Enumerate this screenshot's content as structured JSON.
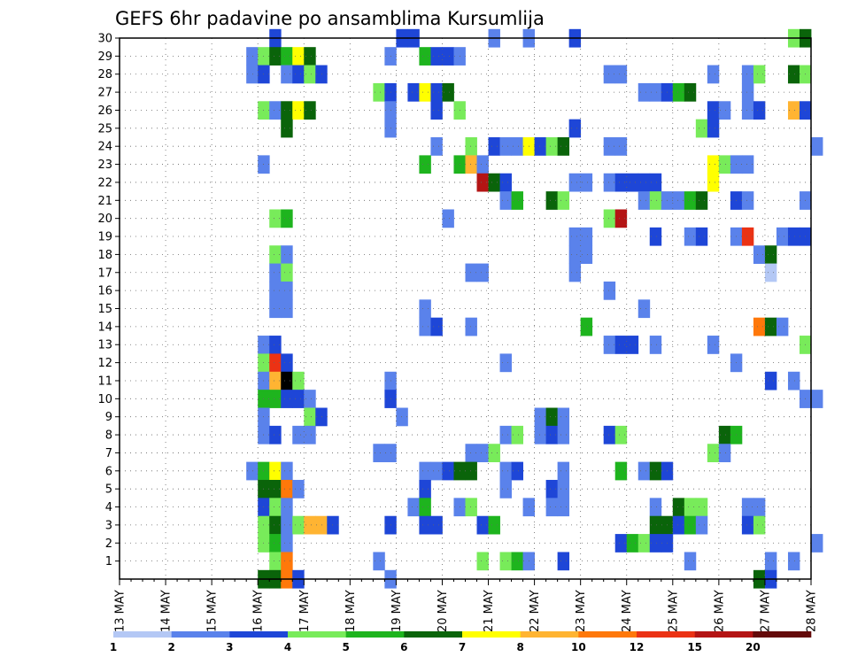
{
  "chart_data": {
    "type": "heatmap",
    "title": "GEFS 6hr padavine po ansamblima Kursumlija",
    "xlabel": "",
    "ylabel": "",
    "x_tick_labels": [
      "13 MAY",
      "14 MAY",
      "15 MAY",
      "16 MAY",
      "17 MAY",
      "18 MAY",
      "19 MAY",
      "20 MAY",
      "21 MAY",
      "22 MAY",
      "23 MAY",
      "24 MAY",
      "25 MAY",
      "26 MAY",
      "27 MAY",
      "28 MAY"
    ],
    "xlim": [
      0,
      15
    ],
    "ylim": [
      0,
      30
    ],
    "y_ticks": [
      1,
      2,
      3,
      4,
      5,
      6,
      7,
      8,
      9,
      10,
      11,
      12,
      13,
      14,
      15,
      16,
      17,
      18,
      19,
      20,
      21,
      22,
      23,
      24,
      25,
      26,
      27,
      28,
      29,
      30
    ],
    "x_step": 0.25,
    "grid": true,
    "legend": {
      "placement": "bottom",
      "labels": [
        "1",
        "2",
        "3",
        "4",
        "5",
        "6",
        "7",
        "8",
        "10",
        "12",
        "15",
        "20"
      ],
      "colors": [
        "#b4c8f5",
        "#5a82eb",
        "#1e46d7",
        "#78eb5a",
        "#1eb41e",
        "#0a640a",
        "#ffff00",
        "#ffb432",
        "#ff780a",
        "#eb3214",
        "#b41414",
        "#640a0a"
      ]
    },
    "cells": [
      [
        3.25,
        30,
        2
      ],
      [
        6.0,
        30,
        2
      ],
      [
        6.25,
        30,
        2
      ],
      [
        8.0,
        30,
        1
      ],
      [
        8.75,
        30,
        1
      ],
      [
        9.75,
        30,
        2
      ],
      [
        14.5,
        30,
        3
      ],
      [
        14.75,
        30,
        5
      ],
      [
        2.75,
        29,
        1
      ],
      [
        3.0,
        29,
        3
      ],
      [
        3.25,
        29,
        5
      ],
      [
        3.5,
        29,
        4
      ],
      [
        3.75,
        29,
        6
      ],
      [
        4.0,
        29,
        5
      ],
      [
        5.75,
        29,
        1
      ],
      [
        6.5,
        29,
        4
      ],
      [
        6.75,
        29,
        2
      ],
      [
        7.0,
        29,
        2
      ],
      [
        7.25,
        29,
        1
      ],
      [
        2.75,
        28,
        1
      ],
      [
        3.0,
        28,
        2
      ],
      [
        3.5,
        28,
        1
      ],
      [
        3.75,
        28,
        2
      ],
      [
        4.0,
        28,
        3
      ],
      [
        4.25,
        28,
        2
      ],
      [
        10.5,
        28,
        1
      ],
      [
        10.75,
        28,
        1
      ],
      [
        12.75,
        28,
        1
      ],
      [
        13.5,
        28,
        1
      ],
      [
        13.75,
        28,
        3
      ],
      [
        14.5,
        28,
        5
      ],
      [
        14.75,
        28,
        3
      ],
      [
        5.5,
        27,
        3
      ],
      [
        5.75,
        27,
        2
      ],
      [
        6.25,
        27,
        2
      ],
      [
        6.5,
        27,
        6
      ],
      [
        6.75,
        27,
        2
      ],
      [
        7.0,
        27,
        5
      ],
      [
        11.25,
        27,
        1
      ],
      [
        11.5,
        27,
        1
      ],
      [
        11.75,
        27,
        2
      ],
      [
        12.0,
        27,
        4
      ],
      [
        12.25,
        27,
        5
      ],
      [
        13.5,
        27,
        1
      ],
      [
        3.0,
        26,
        3
      ],
      [
        3.25,
        26,
        1
      ],
      [
        3.5,
        26,
        5
      ],
      [
        3.75,
        26,
        6
      ],
      [
        4.0,
        26,
        5
      ],
      [
        5.75,
        26,
        1
      ],
      [
        6.75,
        26,
        2
      ],
      [
        7.25,
        26,
        3
      ],
      [
        12.75,
        26,
        2
      ],
      [
        13.0,
        26,
        1
      ],
      [
        13.5,
        26,
        1
      ],
      [
        13.75,
        26,
        2
      ],
      [
        14.5,
        26,
        7
      ],
      [
        14.75,
        26,
        2
      ],
      [
        3.5,
        25,
        5
      ],
      [
        5.75,
        25,
        1
      ],
      [
        9.75,
        25,
        2
      ],
      [
        12.5,
        25,
        3
      ],
      [
        12.75,
        25,
        2
      ],
      [
        6.75,
        24,
        1
      ],
      [
        7.5,
        24,
        3
      ],
      [
        8.0,
        24,
        2
      ],
      [
        8.25,
        24,
        1
      ],
      [
        8.5,
        24,
        1
      ],
      [
        8.75,
        24,
        6
      ],
      [
        9.0,
        24,
        2
      ],
      [
        9.25,
        24,
        3
      ],
      [
        9.5,
        24,
        5
      ],
      [
        10.5,
        24,
        1
      ],
      [
        10.75,
        24,
        1
      ],
      [
        15.0,
        24,
        1
      ],
      [
        3.0,
        23,
        1
      ],
      [
        6.5,
        23,
        4
      ],
      [
        7.25,
        23,
        4
      ],
      [
        7.5,
        23,
        7
      ],
      [
        7.75,
        23,
        1
      ],
      [
        12.75,
        23,
        6
      ],
      [
        13.0,
        23,
        3
      ],
      [
        13.25,
        23,
        1
      ],
      [
        13.5,
        23,
        1
      ],
      [
        7.75,
        22,
        10
      ],
      [
        8.0,
        22,
        5
      ],
      [
        8.25,
        22,
        2
      ],
      [
        9.75,
        22,
        1
      ],
      [
        10.0,
        22,
        1
      ],
      [
        10.5,
        22,
        1
      ],
      [
        10.75,
        22,
        2
      ],
      [
        11.0,
        22,
        2
      ],
      [
        11.25,
        22,
        2
      ],
      [
        11.5,
        22,
        2
      ],
      [
        12.75,
        22,
        6
      ],
      [
        8.25,
        21,
        1
      ],
      [
        8.5,
        21,
        4
      ],
      [
        9.25,
        21,
        5
      ],
      [
        9.5,
        21,
        3
      ],
      [
        11.25,
        21,
        1
      ],
      [
        11.5,
        21,
        3
      ],
      [
        11.75,
        21,
        1
      ],
      [
        12.0,
        21,
        1
      ],
      [
        12.25,
        21,
        4
      ],
      [
        12.5,
        21,
        5
      ],
      [
        13.25,
        21,
        2
      ],
      [
        13.5,
        21,
        1
      ],
      [
        14.75,
        21,
        1
      ],
      [
        3.25,
        20,
        3
      ],
      [
        3.5,
        20,
        4
      ],
      [
        7.0,
        20,
        1
      ],
      [
        10.5,
        20,
        3
      ],
      [
        10.75,
        20,
        10
      ],
      [
        9.75,
        19,
        1
      ],
      [
        10.0,
        19,
        1
      ],
      [
        11.5,
        19,
        2
      ],
      [
        12.25,
        19,
        1
      ],
      [
        12.5,
        19,
        2
      ],
      [
        13.25,
        19,
        1
      ],
      [
        13.5,
        19,
        9
      ],
      [
        14.25,
        19,
        1
      ],
      [
        14.5,
        19,
        2
      ],
      [
        14.75,
        19,
        2
      ],
      [
        3.25,
        18,
        3
      ],
      [
        3.5,
        18,
        1
      ],
      [
        9.75,
        18,
        1
      ],
      [
        10.0,
        18,
        1
      ],
      [
        13.75,
        18,
        1
      ],
      [
        14.0,
        18,
        5
      ],
      [
        3.25,
        17,
        1
      ],
      [
        3.5,
        17,
        3
      ],
      [
        7.5,
        17,
        1
      ],
      [
        7.75,
        17,
        1
      ],
      [
        9.75,
        17,
        1
      ],
      [
        14.0,
        17,
        0
      ],
      [
        3.25,
        16,
        1
      ],
      [
        3.5,
        16,
        1
      ],
      [
        10.5,
        16,
        1
      ],
      [
        3.25,
        15,
        1
      ],
      [
        3.5,
        15,
        1
      ],
      [
        6.5,
        15,
        1
      ],
      [
        11.25,
        15,
        1
      ],
      [
        6.5,
        14,
        1
      ],
      [
        6.75,
        14,
        2
      ],
      [
        7.5,
        14,
        1
      ],
      [
        10.0,
        14,
        4
      ],
      [
        13.75,
        14,
        8
      ],
      [
        14.0,
        14,
        5
      ],
      [
        14.25,
        14,
        1
      ],
      [
        3.0,
        13,
        1
      ],
      [
        3.25,
        13,
        2
      ],
      [
        10.5,
        13,
        1
      ],
      [
        10.75,
        13,
        2
      ],
      [
        11.0,
        13,
        2
      ],
      [
        11.5,
        13,
        1
      ],
      [
        12.75,
        13,
        1
      ],
      [
        14.75,
        13,
        3
      ],
      [
        3.0,
        12,
        3
      ],
      [
        3.25,
        12,
        9
      ],
      [
        3.5,
        12,
        2
      ],
      [
        8.25,
        12,
        1
      ],
      [
        13.25,
        12,
        1
      ],
      [
        3.0,
        11,
        1
      ],
      [
        3.25,
        11,
        7
      ],
      [
        3.5,
        11,
        12
      ],
      [
        3.75,
        11,
        3
      ],
      [
        5.75,
        11,
        1
      ],
      [
        14.0,
        11,
        2
      ],
      [
        14.5,
        11,
        1
      ],
      [
        3.0,
        10,
        4
      ],
      [
        3.25,
        10,
        4
      ],
      [
        3.5,
        10,
        2
      ],
      [
        3.75,
        10,
        2
      ],
      [
        4.0,
        10,
        1
      ],
      [
        5.75,
        10,
        2
      ],
      [
        14.75,
        10,
        1
      ],
      [
        15.0,
        10,
        1
      ],
      [
        3.0,
        9,
        1
      ],
      [
        4.0,
        9,
        3
      ],
      [
        4.25,
        9,
        2
      ],
      [
        6.0,
        9,
        1
      ],
      [
        9.0,
        9,
        1
      ],
      [
        9.25,
        9,
        5
      ],
      [
        9.5,
        9,
        1
      ],
      [
        3.0,
        8,
        1
      ],
      [
        3.25,
        8,
        2
      ],
      [
        3.75,
        8,
        1
      ],
      [
        4.0,
        8,
        1
      ],
      [
        8.25,
        8,
        1
      ],
      [
        8.5,
        8,
        3
      ],
      [
        9.0,
        8,
        1
      ],
      [
        9.25,
        8,
        2
      ],
      [
        9.5,
        8,
        1
      ],
      [
        10.5,
        8,
        2
      ],
      [
        10.75,
        8,
        3
      ],
      [
        13.0,
        8,
        5
      ],
      [
        13.25,
        8,
        4
      ],
      [
        5.5,
        7,
        1
      ],
      [
        5.75,
        7,
        1
      ],
      [
        7.5,
        7,
        1
      ],
      [
        7.75,
        7,
        1
      ],
      [
        8.0,
        7,
        3
      ],
      [
        12.75,
        7,
        3
      ],
      [
        13.0,
        7,
        1
      ],
      [
        2.75,
        6,
        1
      ],
      [
        3.0,
        6,
        4
      ],
      [
        3.25,
        6,
        6
      ],
      [
        3.5,
        6,
        1
      ],
      [
        6.5,
        6,
        1
      ],
      [
        6.75,
        6,
        1
      ],
      [
        7.0,
        6,
        2
      ],
      [
        7.25,
        6,
        5
      ],
      [
        7.5,
        6,
        5
      ],
      [
        8.25,
        6,
        1
      ],
      [
        8.5,
        6,
        2
      ],
      [
        9.5,
        6,
        1
      ],
      [
        10.75,
        6,
        4
      ],
      [
        11.25,
        6,
        1
      ],
      [
        11.5,
        6,
        5
      ],
      [
        11.75,
        6,
        2
      ],
      [
        3.0,
        5,
        5
      ],
      [
        3.25,
        5,
        5
      ],
      [
        3.5,
        5,
        8
      ],
      [
        3.75,
        5,
        1
      ],
      [
        6.5,
        5,
        2
      ],
      [
        8.25,
        5,
        1
      ],
      [
        9.25,
        5,
        2
      ],
      [
        9.5,
        5,
        1
      ],
      [
        3.0,
        4,
        2
      ],
      [
        3.25,
        4,
        3
      ],
      [
        3.5,
        4,
        1
      ],
      [
        6.25,
        4,
        1
      ],
      [
        6.5,
        4,
        4
      ],
      [
        7.25,
        4,
        1
      ],
      [
        7.5,
        4,
        3
      ],
      [
        8.75,
        4,
        1
      ],
      [
        9.25,
        4,
        1
      ],
      [
        9.5,
        4,
        1
      ],
      [
        11.5,
        4,
        1
      ],
      [
        12.0,
        4,
        5
      ],
      [
        12.25,
        4,
        3
      ],
      [
        12.5,
        4,
        3
      ],
      [
        13.5,
        4,
        1
      ],
      [
        13.75,
        4,
        1
      ],
      [
        3.0,
        3,
        3
      ],
      [
        3.25,
        3,
        5
      ],
      [
        3.5,
        3,
        1
      ],
      [
        3.75,
        3,
        3
      ],
      [
        4.0,
        3,
        7
      ],
      [
        4.25,
        3,
        7
      ],
      [
        4.5,
        3,
        2
      ],
      [
        5.75,
        3,
        2
      ],
      [
        6.5,
        3,
        2
      ],
      [
        6.75,
        3,
        2
      ],
      [
        7.75,
        3,
        2
      ],
      [
        8.0,
        3,
        4
      ],
      [
        11.5,
        3,
        5
      ],
      [
        11.75,
        3,
        5
      ],
      [
        12.0,
        3,
        2
      ],
      [
        12.25,
        3,
        4
      ],
      [
        12.5,
        3,
        1
      ],
      [
        13.5,
        3,
        2
      ],
      [
        13.75,
        3,
        3
      ],
      [
        3.0,
        2,
        3
      ],
      [
        3.25,
        2,
        4
      ],
      [
        3.5,
        2,
        1
      ],
      [
        10.75,
        2,
        2
      ],
      [
        11.0,
        2,
        4
      ],
      [
        11.25,
        2,
        3
      ],
      [
        11.5,
        2,
        2
      ],
      [
        11.75,
        2,
        2
      ],
      [
        15.0,
        2,
        1
      ],
      [
        3.25,
        1,
        3
      ],
      [
        3.5,
        1,
        8
      ],
      [
        5.5,
        1,
        1
      ],
      [
        7.75,
        1,
        3
      ],
      [
        8.25,
        1,
        3
      ],
      [
        8.5,
        1,
        4
      ],
      [
        8.75,
        1,
        1
      ],
      [
        9.5,
        1,
        2
      ],
      [
        12.25,
        1,
        1
      ],
      [
        14.0,
        1,
        1
      ],
      [
        14.5,
        1,
        1
      ],
      [
        3.0,
        0,
        5
      ],
      [
        3.25,
        0,
        5
      ],
      [
        3.5,
        0,
        8
      ],
      [
        3.75,
        0,
        2
      ],
      [
        5.75,
        0,
        1
      ],
      [
        13.75,
        0,
        5
      ],
      [
        14.0,
        0,
        2
      ]
    ]
  }
}
